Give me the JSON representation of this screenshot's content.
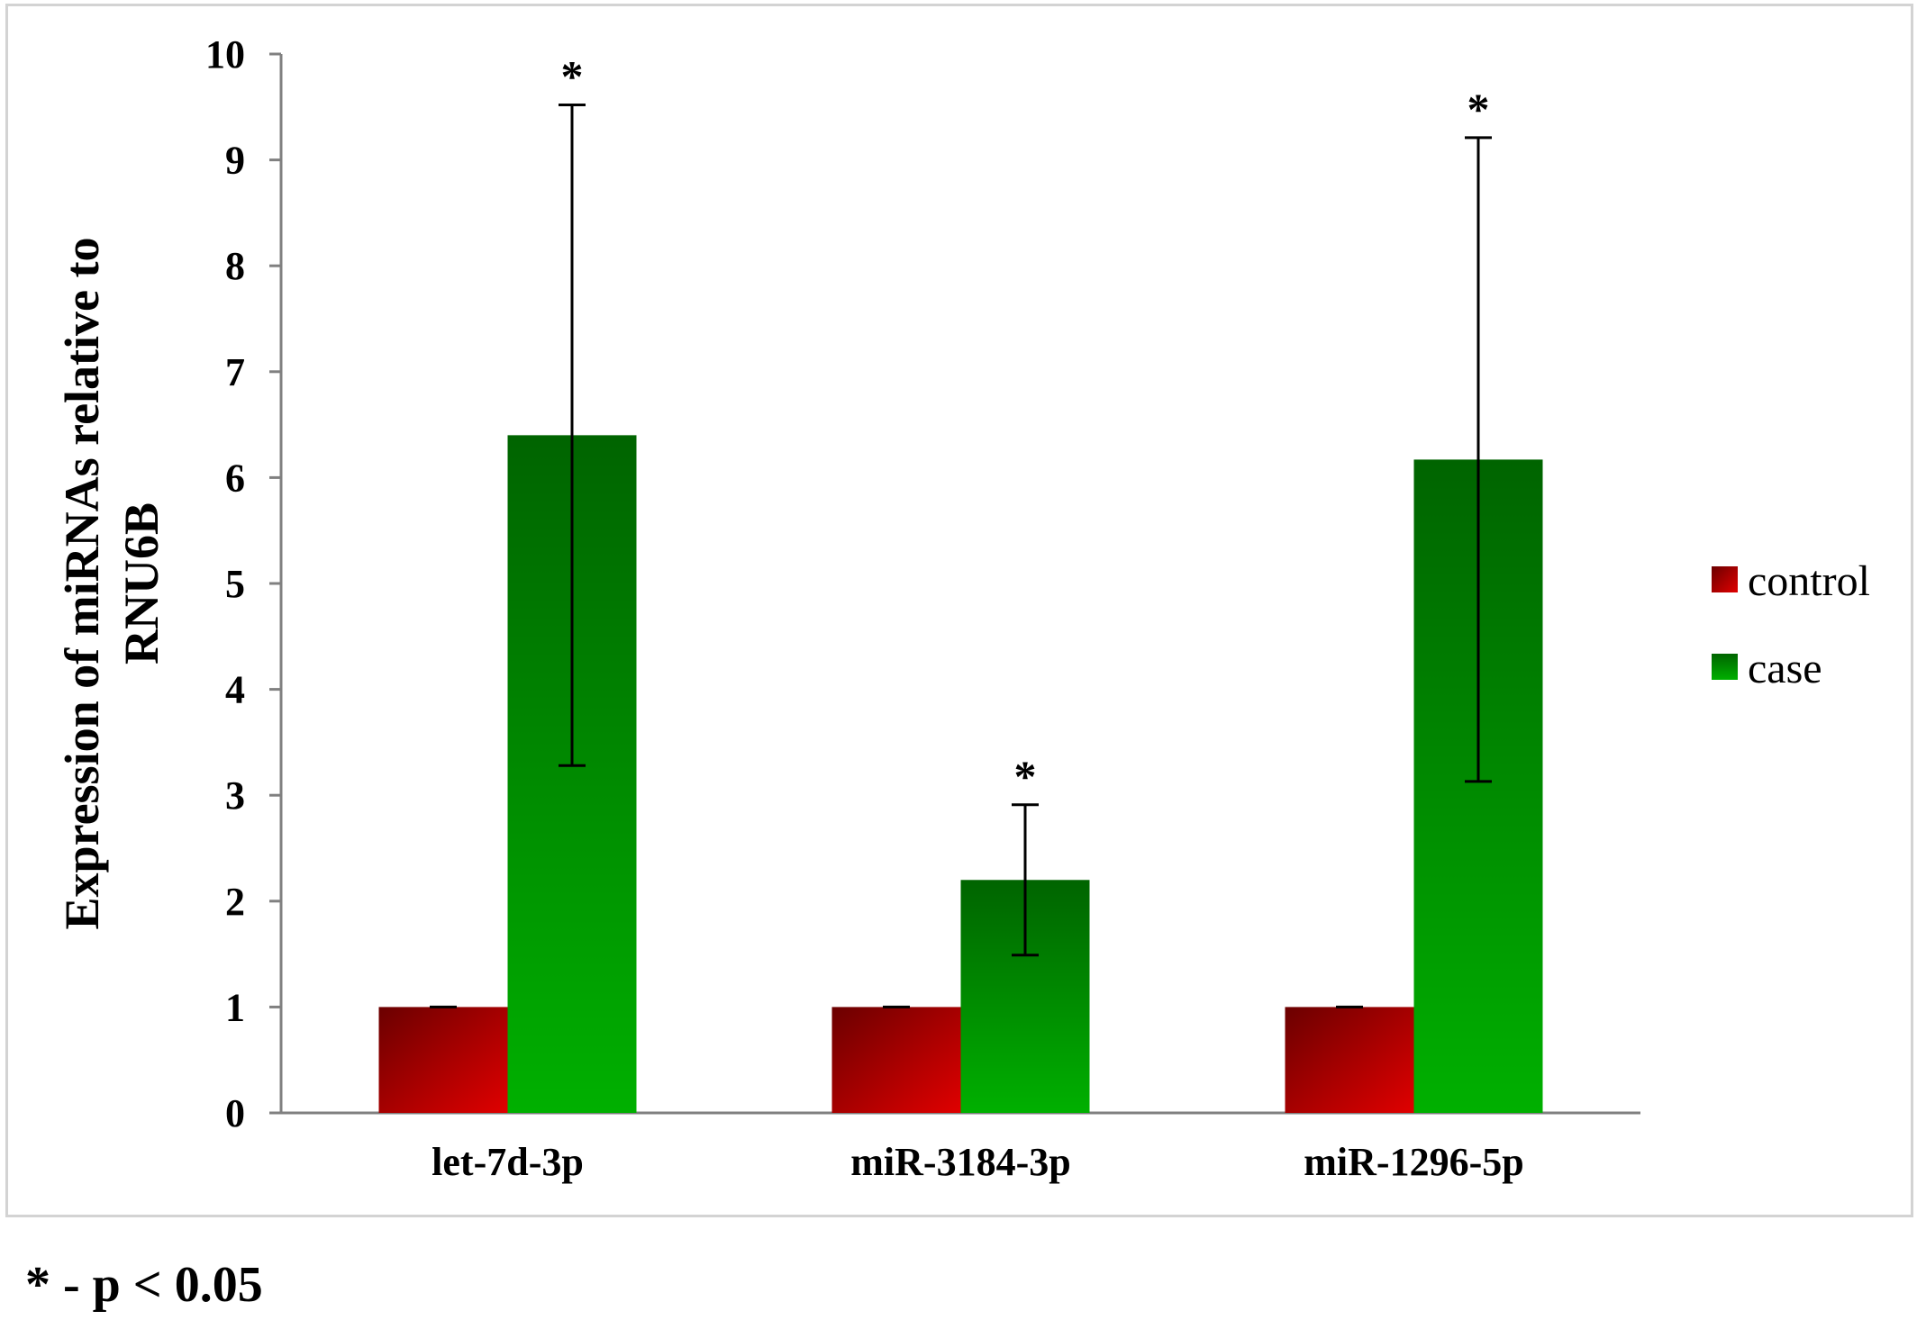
{
  "chart_data": {
    "type": "bar",
    "title": "",
    "xlabel": "",
    "ylabel_lines": [
      "Expression of miRNAs relative to",
      "RNU6B"
    ],
    "ylim": [
      0,
      10
    ],
    "yticks": [
      0,
      1,
      2,
      3,
      4,
      5,
      6,
      7,
      8,
      9,
      10
    ],
    "categories": [
      "let-7d-3p",
      "miR-3184-3p",
      "miR-1296-5p"
    ],
    "series": [
      {
        "name": "control",
        "values": [
          1.0,
          1.0,
          1.0
        ],
        "error": [
          0.0,
          0.0,
          0.0
        ],
        "color_dark": "#6b0000",
        "color_light": "#e00000"
      },
      {
        "name": "case",
        "values": [
          6.4,
          2.2,
          6.17
        ],
        "error": [
          3.12,
          0.71,
          3.04
        ],
        "color_dark": "#006400",
        "color_light": "#00b000"
      }
    ],
    "significance_marker": "*",
    "significant": [
      true,
      true,
      true
    ],
    "legend_position": "right",
    "grid": false
  },
  "footnote": "* - p < 0.05"
}
